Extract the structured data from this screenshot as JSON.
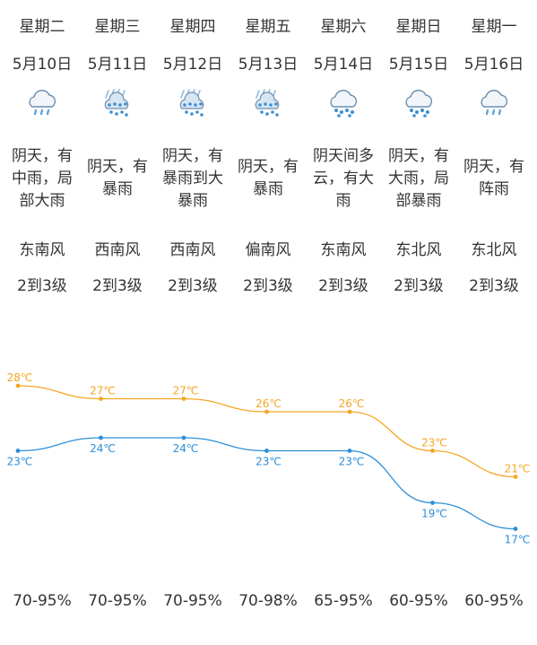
{
  "days": [
    {
      "weekday": "星期二",
      "date": "5月10日",
      "icon": "cloud-light-rain-icon",
      "desc": "阴天，有中雨，局部大雨",
      "wind": "东南风",
      "level": "2到3级",
      "humidity": "70-95%"
    },
    {
      "weekday": "星期三",
      "date": "5月11日",
      "icon": "heavy-rain-icon",
      "desc": "阴天，有暴雨",
      "wind": "西南风",
      "level": "2到3级",
      "humidity": "70-95%"
    },
    {
      "weekday": "星期四",
      "date": "5月12日",
      "icon": "heavy-rain-icon",
      "desc": "阴天，有暴雨到大暴雨",
      "wind": "西南风",
      "level": "2到3级",
      "humidity": "70-95%"
    },
    {
      "weekday": "星期五",
      "date": "5月13日",
      "icon": "heavy-rain-icon",
      "desc": "阴天，有暴雨",
      "wind": "偏南风",
      "level": "2到3级",
      "humidity": "70-98%"
    },
    {
      "weekday": "星期六",
      "date": "5月14日",
      "icon": "cloud-rain-icon",
      "desc": "阴天间多云，有大雨",
      "wind": "东南风",
      "level": "2到3级",
      "humidity": "65-95%"
    },
    {
      "weekday": "星期日",
      "date": "5月15日",
      "icon": "cloud-rain-icon",
      "desc": "阴天，有大雨，局部暴雨",
      "wind": "东北风",
      "level": "2到3级",
      "humidity": "60-95%"
    },
    {
      "weekday": "星期一",
      "date": "5月16日",
      "icon": "cloud-light-rain-icon",
      "desc": "阴天，有阵雨",
      "wind": "东北风",
      "level": "2到3级",
      "humidity": "60-95%"
    }
  ],
  "chart_data": {
    "type": "line",
    "x": [
      "5月10日",
      "5月11日",
      "5月12日",
      "5月13日",
      "5月14日",
      "5月15日",
      "5月16日"
    ],
    "series": [
      {
        "values": [
          28,
          27,
          27,
          26,
          26,
          23,
          21
        ],
        "labels": [
          "28℃",
          "27℃",
          "27℃",
          "26℃",
          "26℃",
          "23℃",
          "21℃"
        ],
        "color": "#f5a623"
      },
      {
        "values": [
          23,
          24,
          24,
          23,
          23,
          19,
          17
        ],
        "labels": [
          "23℃",
          "24℃",
          "24℃",
          "23℃",
          "23℃",
          "19℃",
          "17℃"
        ],
        "color": "#2d8fd8"
      }
    ],
    "grid": false,
    "legend": "none"
  },
  "colors": {
    "high": "#f5a623",
    "low": "#2d8fd8",
    "text": "#333333",
    "icon": "#5ba3d9"
  }
}
